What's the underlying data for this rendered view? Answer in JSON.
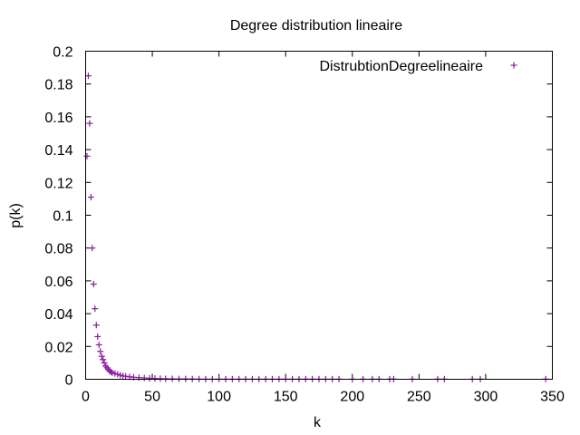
{
  "chart_data": {
    "type": "scatter",
    "title": "Degree distribution lineaire",
    "xlabel": "k",
    "ylabel": "p(k)",
    "xlim": [
      0,
      350
    ],
    "ylim": [
      0,
      0.2
    ],
    "grid": false,
    "legend_position": "top-right",
    "x_ticks": [
      "0",
      "50",
      "100",
      "150",
      "200",
      "250",
      "300",
      "350"
    ],
    "y_ticks": [
      "0",
      "0.02",
      "0.04",
      "0.06",
      "0.08",
      "0.1",
      "0.12",
      "0.14",
      "0.16",
      "0.18",
      "0.2"
    ],
    "series": [
      {
        "name": "DistrubtionDegreelineaire",
        "color": "#8b1aa0",
        "marker": "plus",
        "points": [
          [
            1,
            0.136
          ],
          [
            2,
            0.185
          ],
          [
            3,
            0.156
          ],
          [
            4,
            0.111
          ],
          [
            5,
            0.08
          ],
          [
            6,
            0.058
          ],
          [
            7,
            0.043
          ],
          [
            8,
            0.033
          ],
          [
            9,
            0.026
          ],
          [
            10,
            0.021
          ],
          [
            11,
            0.017
          ],
          [
            12,
            0.014
          ],
          [
            13,
            0.012
          ],
          [
            14,
            0.01
          ],
          [
            15,
            0.008
          ],
          [
            16,
            0.007
          ],
          [
            17,
            0.006
          ],
          [
            18,
            0.005
          ],
          [
            19,
            0.0045
          ],
          [
            20,
            0.004
          ],
          [
            22,
            0.0035
          ],
          [
            24,
            0.003
          ],
          [
            26,
            0.0025
          ],
          [
            28,
            0.002
          ],
          [
            30,
            0.0018
          ],
          [
            33,
            0.0015
          ],
          [
            36,
            0.0012
          ],
          [
            40,
            0.001
          ],
          [
            44,
            0.0008
          ],
          [
            48,
            0.0006
          ],
          [
            52,
            0.0005
          ],
          [
            56,
            0.0004
          ],
          [
            60,
            0.0003
          ],
          [
            65,
            0.0003
          ],
          [
            70,
            0.0002
          ],
          [
            75,
            0.0002
          ],
          [
            80,
            0.0002
          ],
          [
            85,
            0.0001
          ],
          [
            90,
            0.0001
          ],
          [
            95,
            0.0001
          ],
          [
            100,
            0.0001
          ],
          [
            105,
            0.0001
          ],
          [
            110,
            0.0001
          ],
          [
            115,
            0.0001
          ],
          [
            120,
            0.0001
          ],
          [
            125,
            0.0001
          ],
          [
            130,
            0.0001
          ],
          [
            135,
            0.0001
          ],
          [
            140,
            0.0001
          ],
          [
            145,
            0.0001
          ],
          [
            150,
            0.0001
          ],
          [
            155,
            0.0001
          ],
          [
            160,
            0.0001
          ],
          [
            165,
            0.0001
          ],
          [
            170,
            0.0001
          ],
          [
            175,
            0.0001
          ],
          [
            180,
            0.0001
          ],
          [
            185,
            0.0001
          ],
          [
            190,
            0.0001
          ],
          [
            200,
            0.0001
          ],
          [
            208,
            0.0001
          ],
          [
            215,
            0.0001
          ],
          [
            220,
            0.0001
          ],
          [
            228,
            0.0001
          ],
          [
            231,
            0.0001
          ],
          [
            245,
            0.0001
          ],
          [
            264,
            0.0001
          ],
          [
            269,
            0.0001
          ],
          [
            290,
            0.0001
          ],
          [
            296,
            0.0001
          ],
          [
            345,
            0.0001
          ]
        ]
      }
    ]
  }
}
